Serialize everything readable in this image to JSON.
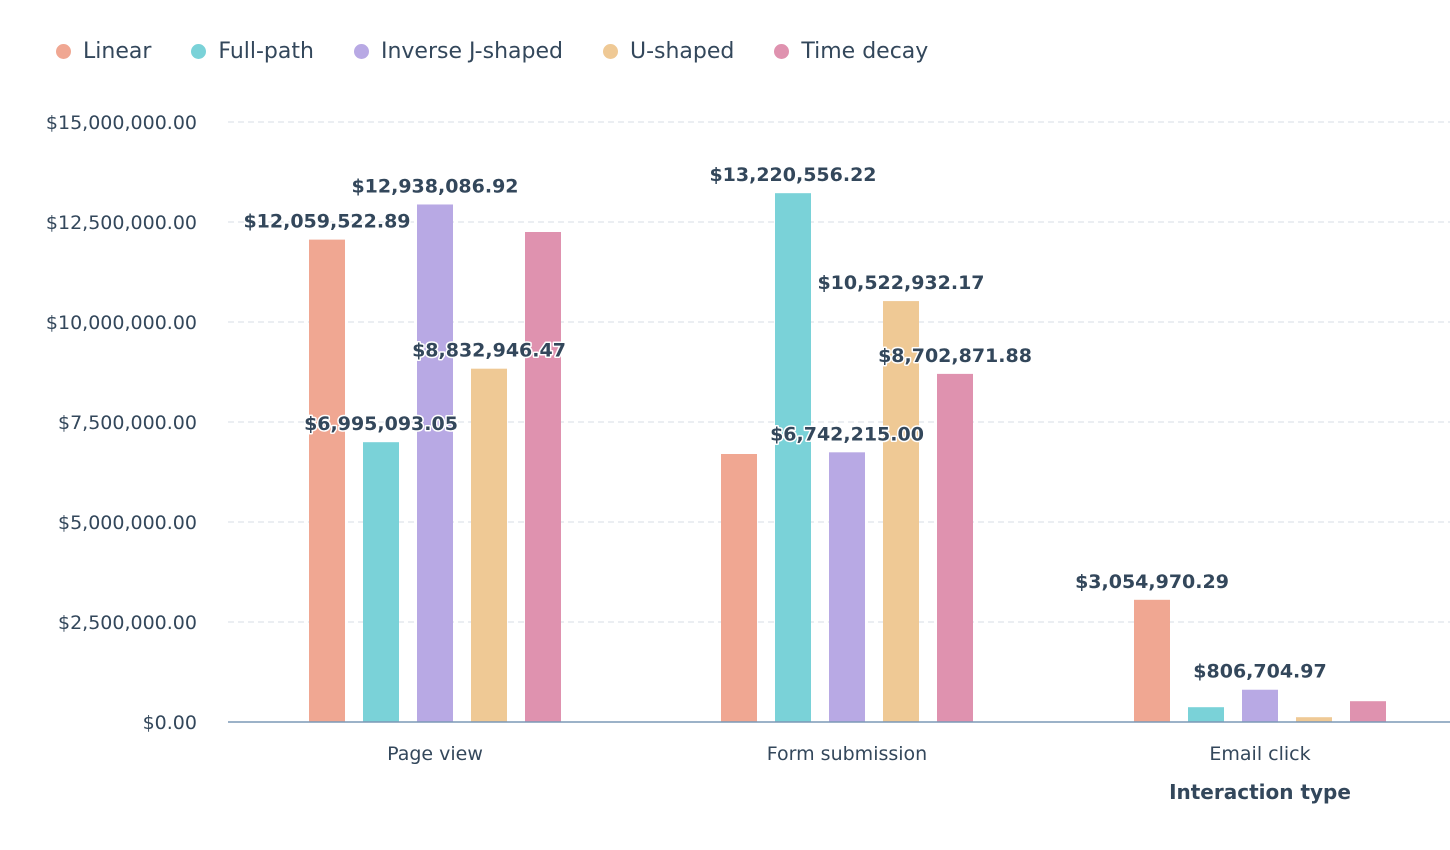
{
  "chart_data": {
    "type": "bar",
    "title": "",
    "xlabel": "Interaction type",
    "ylabel": "",
    "categories": [
      "Page view",
      "Form submission",
      "Email click"
    ],
    "ylim": [
      0,
      15000000
    ],
    "yticks": [
      {
        "value": 0,
        "label": "$0.00"
      },
      {
        "value": 2500000,
        "label": "$2,500,000.00"
      },
      {
        "value": 5000000,
        "label": "$5,000,000.00"
      },
      {
        "value": 7500000,
        "label": "$7,500,000.00"
      },
      {
        "value": 10000000,
        "label": "$10,000,000.00"
      },
      {
        "value": 12500000,
        "label": "$12,500,000.00"
      },
      {
        "value": 15000000,
        "label": "$15,000,000.00"
      }
    ],
    "grid": true,
    "legend_position": "top-left",
    "series": [
      {
        "name": "Linear",
        "color": "#f0a792",
        "values": [
          12059522.89,
          6700000,
          3054970.29
        ],
        "labels": [
          "$12,059,522.89",
          null,
          "$3,054,970.29"
        ]
      },
      {
        "name": "Full-path",
        "color": "#7ad2d8",
        "values": [
          6995093.05,
          13220556.22,
          370000
        ],
        "labels": [
          "$6,995,093.05",
          "$13,220,556.22",
          null
        ]
      },
      {
        "name": "Inverse J-shaped",
        "color": "#b8a9e4",
        "values": [
          12938086.92,
          6742215.0,
          806704.97
        ],
        "labels": [
          "$12,938,086.92",
          "$6,742,215.00",
          "$806,704.97"
        ]
      },
      {
        "name": "U-shaped",
        "color": "#efc995",
        "values": [
          8832946.47,
          10522932.17,
          120000
        ],
        "labels": [
          "$8,832,946.47",
          "$10,522,932.17",
          null
        ]
      },
      {
        "name": "Time decay",
        "color": "#df92af",
        "values": [
          12250000,
          8702871.88,
          520000
        ],
        "labels": [
          null,
          "$8,702,871.88",
          null
        ]
      }
    ]
  }
}
